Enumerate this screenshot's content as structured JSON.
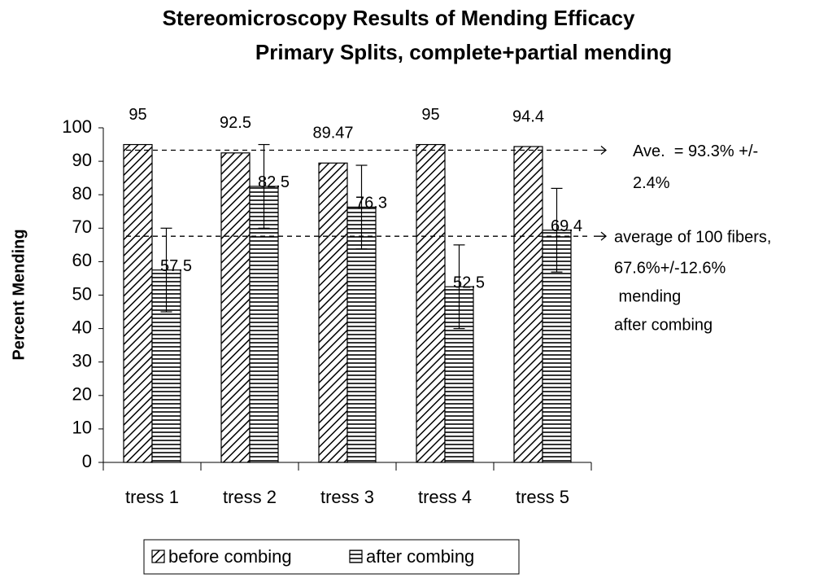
{
  "chart_data": {
    "type": "bar",
    "title": [
      "Stereomicroscopy Results of Mending Efficacy",
      "Primary Splits, complete+partial mending"
    ],
    "y_label": "Percent Mending",
    "categories": [
      "tress 1",
      "tress 2",
      "tress 3",
      "tress 4",
      "tress 5"
    ],
    "series": [
      {
        "name": "before combing",
        "color": "#000000",
        "pattern": "diagonal",
        "values": [
          95,
          92.5,
          89.47,
          95,
          94.4
        ]
      },
      {
        "name": "after combing",
        "color": "#000000",
        "pattern": "horizontal",
        "values": [
          57.5,
          82.5,
          76.3,
          52.5,
          69.4
        ],
        "error": [
          12.5,
          12.5,
          12.5,
          12.5,
          12.5
        ]
      }
    ],
    "ylim": [
      0,
      100
    ],
    "yticks": [
      0,
      10,
      20,
      30,
      40,
      50,
      60,
      70,
      80,
      90,
      100
    ],
    "grid": false,
    "legend": "bottom",
    "annotations": [
      {
        "value": 93.3,
        "lines": [
          "Ave.  = 93.3% +/-",
          "2.4%"
        ]
      },
      {
        "value": 67.6,
        "lines": [
          "average of 100 fibers,",
          "67.6%+/-12.6%",
          " mending",
          "after combing"
        ]
      }
    ]
  }
}
